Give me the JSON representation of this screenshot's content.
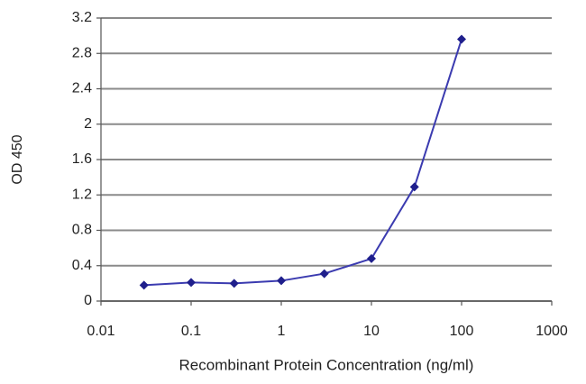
{
  "chart_data": {
    "type": "line",
    "xlabel": "Recombinant Protein Concentration (ng/ml)",
    "ylabel": "OD 450",
    "x": [
      0.03,
      0.1,
      0.3,
      1,
      3,
      10,
      30,
      100
    ],
    "values": [
      0.18,
      0.21,
      0.2,
      0.23,
      0.31,
      0.48,
      1.29,
      2.96
    ],
    "color": "#3b3bb0",
    "marker_color": "#1f1f8c",
    "xscale": "log",
    "xlim": [
      0.01,
      1000
    ],
    "xticks": [
      0.01,
      0.1,
      1,
      10,
      100,
      1000
    ],
    "ylim": [
      0,
      3.2
    ],
    "yticks": [
      0,
      0.4,
      0.8,
      1.2,
      1.6,
      2,
      2.4,
      2.8,
      3.2
    ],
    "grid": true
  }
}
